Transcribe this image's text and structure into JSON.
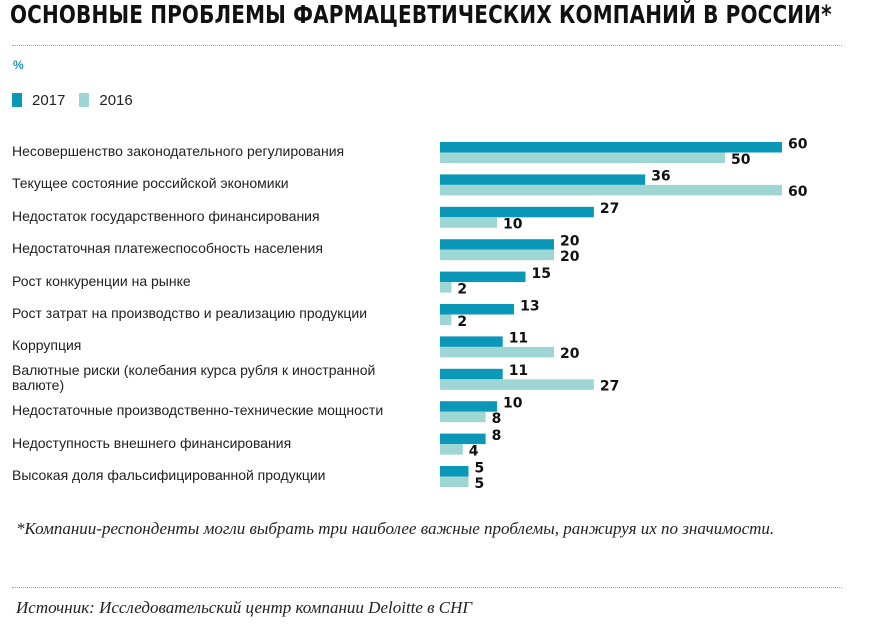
{
  "title": "ОСНОВНЫЕ ПРОБЛЕМЫ ФАРМАЦЕВТИЧЕСКИХ КОМПАНИЙ В РОССИИ*",
  "unit": "%",
  "footnote": "*Компании-респонденты могли выбрать три наиболее важные проблемы, ранжируя их по значимости.",
  "source": "Источник: Исследовательский центр компании Deloitte в СНГ",
  "chart_data": {
    "type": "bar",
    "orientation": "horizontal",
    "title": "ОСНОВНЫЕ ПРОБЛЕМЫ ФАРМАЦЕВТИЧЕСКИХ КОМПАНИЙ В РОССИИ*",
    "ylabel": "%",
    "legend_placement": "top-left",
    "grid": false,
    "xlim": [
      0,
      60
    ],
    "categories": [
      "Несовершенство законодательного регулирования",
      "Текущее состояние российской экономики",
      "Недостаток государственного финансирования",
      "Недостаточная платежеспособность населения",
      "Рост конкуренции на рынке",
      "Рост затрат на производство и реализацию продукции",
      "Коррупция",
      "Валютные риски (колебания курса рубля к иностранной валюте)",
      "Недостаточные производственно-технические мощности",
      "Недоступность внешнего финансирования",
      "Высокая доля фальсифицированной продукции"
    ],
    "series": [
      {
        "name": "2017",
        "color": "#0a97b8",
        "values": [
          60,
          36,
          27,
          20,
          15,
          13,
          11,
          11,
          10,
          8,
          5
        ]
      },
      {
        "name": "2016",
        "color": "#9dd6d3",
        "values": [
          50,
          60,
          10,
          20,
          2,
          2,
          20,
          27,
          8,
          4,
          5
        ]
      }
    ]
  }
}
